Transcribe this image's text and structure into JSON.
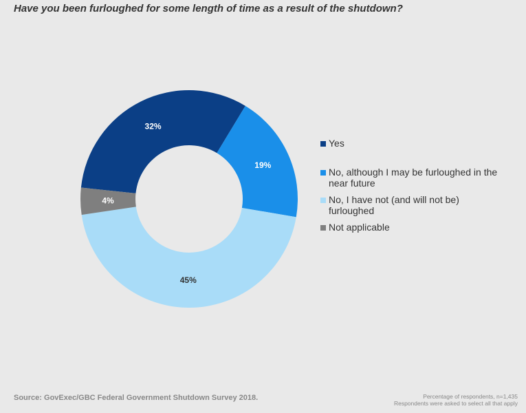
{
  "chart_data": {
    "type": "pie",
    "donut": true,
    "title": "Have you been furloughed for some length of time as a result of the shutdown?",
    "categories": [
      "Yes",
      "No, although I may be furloughed in the near future",
      "No, I have not (and will not be) furloughed",
      "Not applicable"
    ],
    "values": [
      32,
      19,
      45,
      4
    ],
    "data_labels": [
      "32%",
      "19%",
      "45%",
      "4%"
    ],
    "colors": [
      "#0b3f86",
      "#1a8fe9",
      "#a9dcf8",
      "#7f7f7f"
    ],
    "legend_position": "right",
    "source": "Source: GovExec/GBC Federal Government Shutdown Survey 2018.",
    "notes": [
      "Percentage of respondents, n=1,435",
      "Respondents were asked to select all that apply"
    ]
  }
}
